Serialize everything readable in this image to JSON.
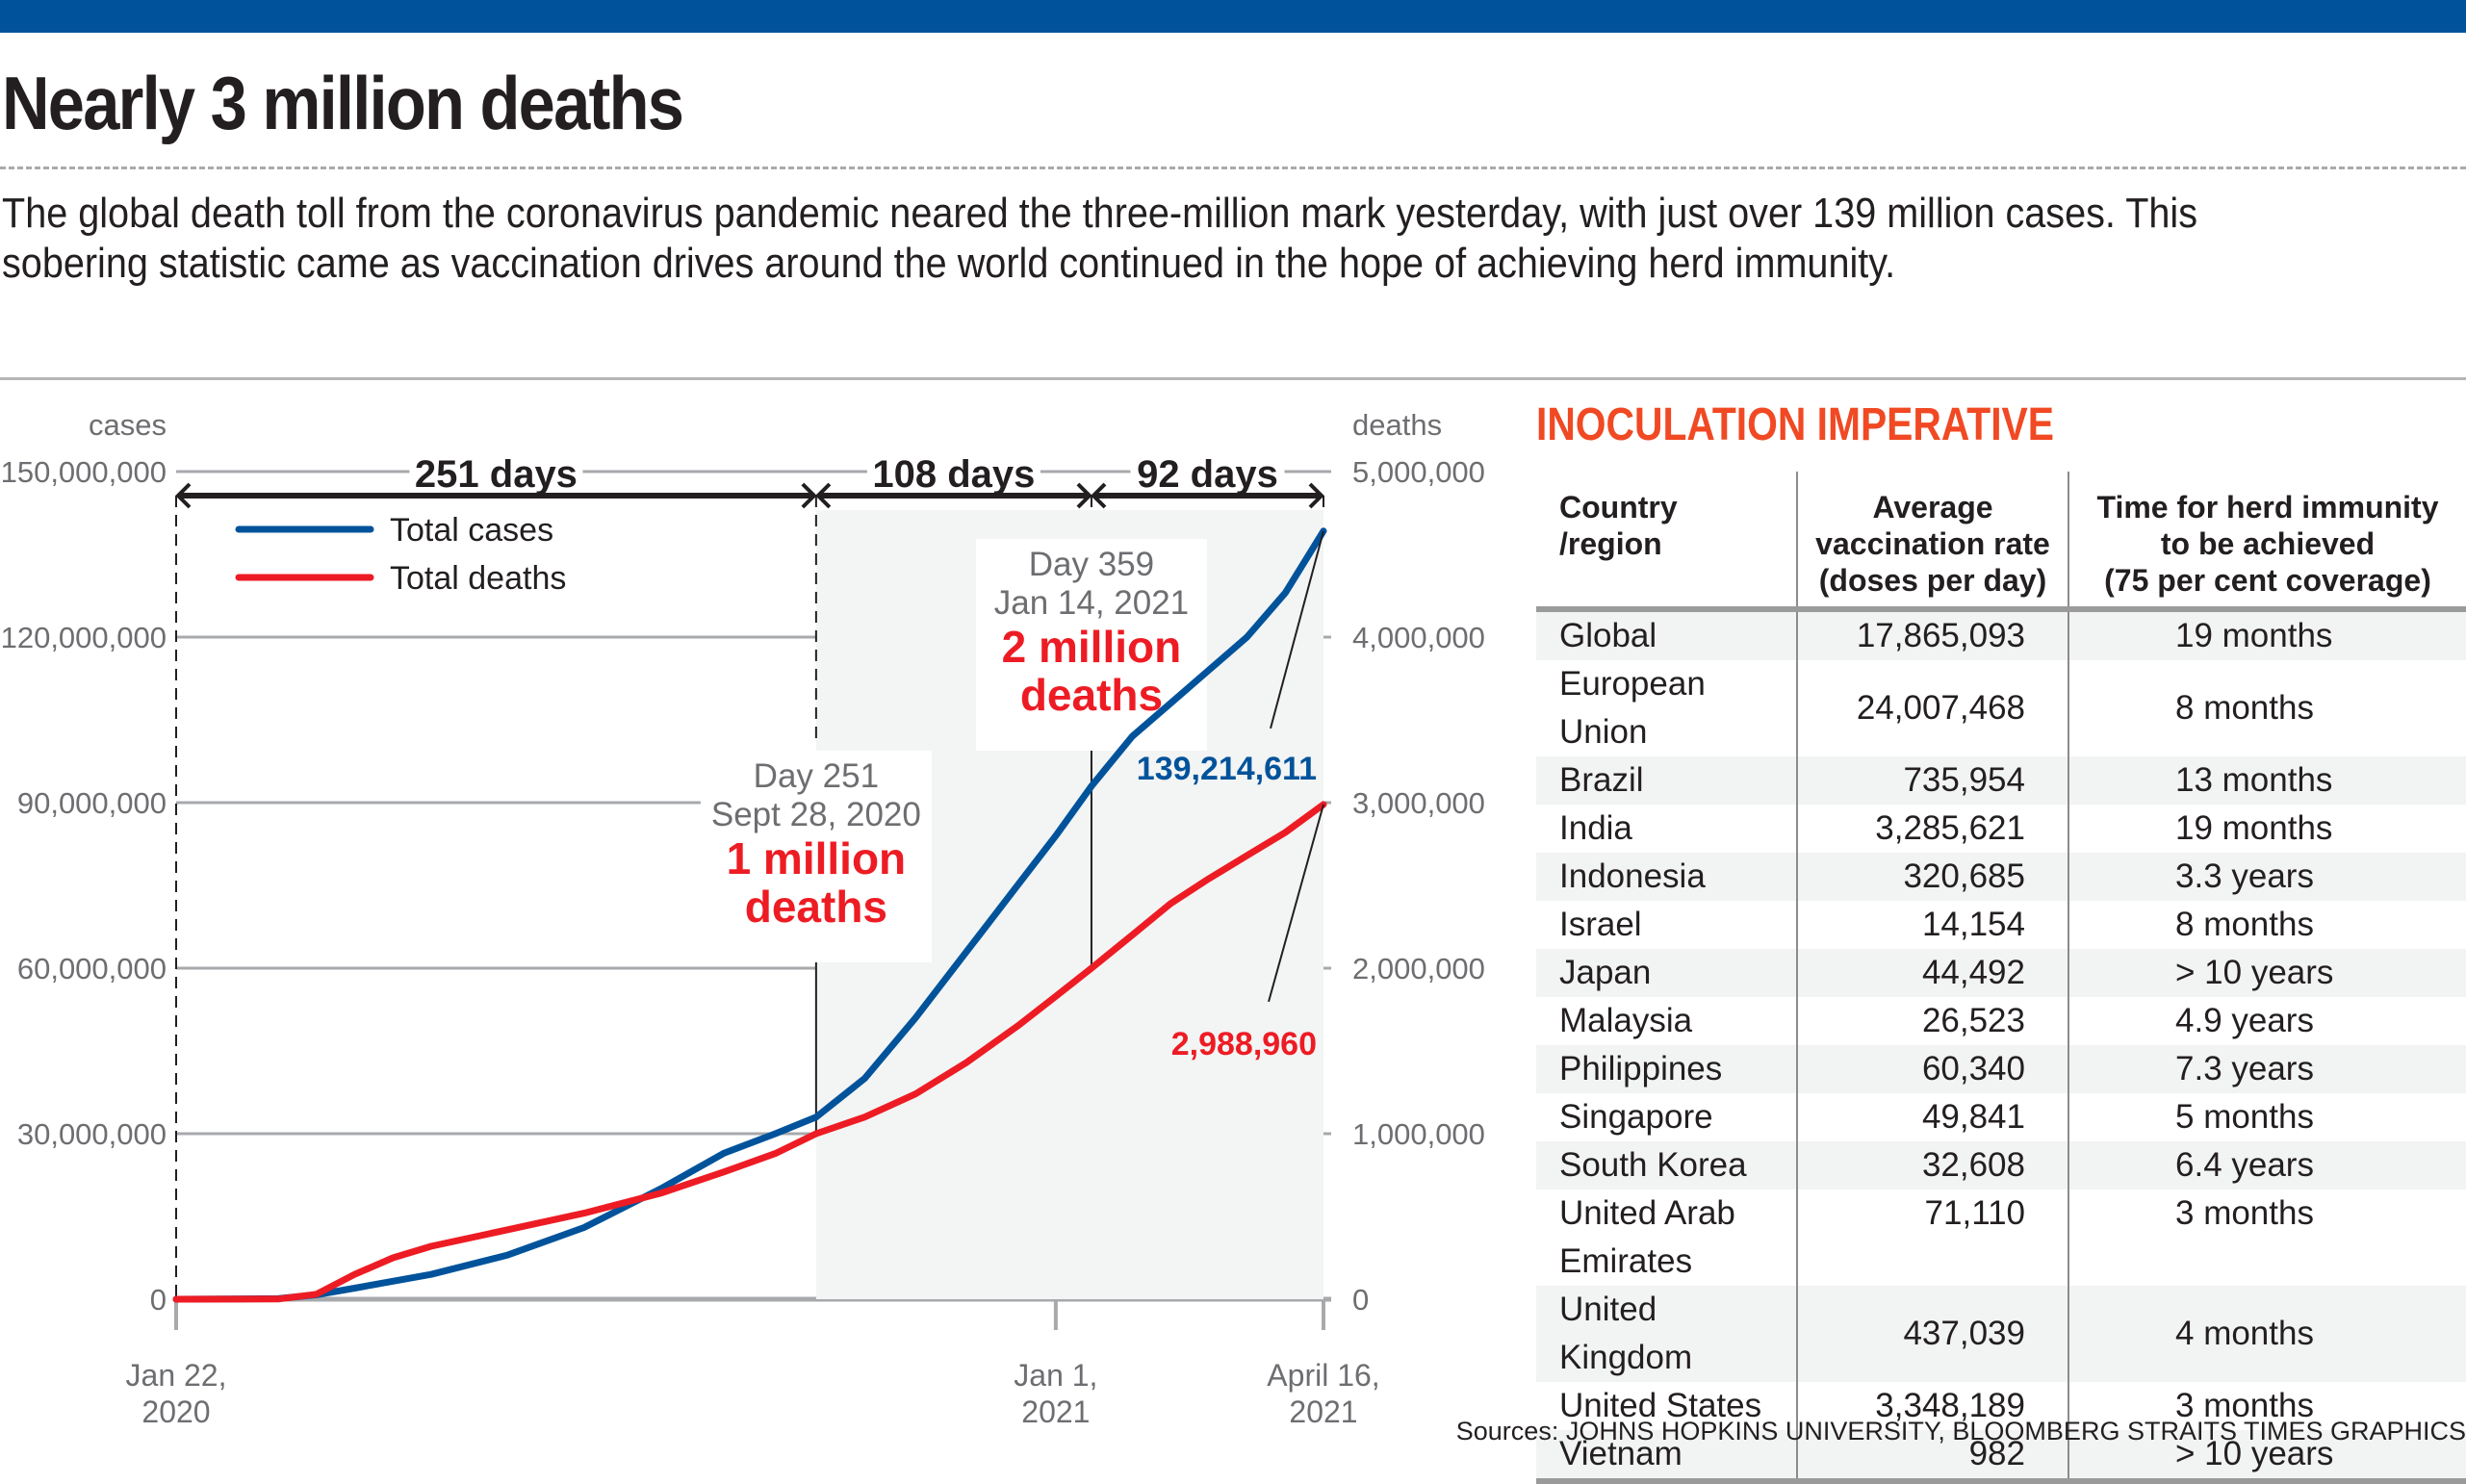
{
  "header": {
    "title": "Nearly 3 million deaths",
    "intro": "The global death toll from the coronavirus pandemic neared the three-million mark yesterday, with just over 139 million cases. This sobering statistic came as vaccination drives around the world continued in the hope of achieving herd immunity.",
    "brand_color": "#00539b"
  },
  "chart_data": {
    "type": "line",
    "title": "",
    "x_unit": "days since Jan 22, 2020",
    "xlim": [
      0,
      450
    ],
    "x_tick_labels": [
      {
        "day": 0,
        "line1": "Jan 22,",
        "line2": "2020"
      },
      {
        "day": 345,
        "line1": "Jan 1,",
        "line2": "2021"
      },
      {
        "day": 450,
        "line1": "April 16,",
        "line2": "2021"
      }
    ],
    "left_axis": {
      "label": "cases",
      "ylim": [
        0,
        150000000
      ],
      "ticks": [
        "0",
        "30,000,000",
        "60,000,000",
        "90,000,000",
        "120,000,000",
        "150,000,000"
      ]
    },
    "right_axis": {
      "label": "deaths",
      "ylim": [
        0,
        5000000
      ],
      "ticks": [
        "0",
        "1,000,000",
        "2,000,000",
        "3,000,000",
        "4,000,000",
        "5,000,000"
      ]
    },
    "grid": true,
    "legend": {
      "position": "top-left",
      "entries": [
        {
          "name": "Total cases",
          "color": "#00539b"
        },
        {
          "name": "Total deaths",
          "color": "#ed1c24"
        }
      ]
    },
    "series": [
      {
        "name": "Total cases",
        "axis": "left",
        "color": "#00539b",
        "x": [
          0,
          40,
          55,
          70,
          100,
          130,
          160,
          190,
          215,
          235,
          251,
          270,
          290,
          310,
          330,
          345,
          359,
          375,
          390,
          405,
          420,
          435,
          450
        ],
        "y": [
          0,
          100000,
          800000,
          2000000,
          4500000,
          8000000,
          13000000,
          20000000,
          26500000,
          30000000,
          33000000,
          40000000,
          51000000,
          63000000,
          75000000,
          84000000,
          93000000,
          102000000,
          108000000,
          114000000,
          120000000,
          128000000,
          139214611
        ]
      },
      {
        "name": "Total deaths",
        "axis": "right",
        "color": "#ed1c24",
        "x": [
          0,
          40,
          55,
          70,
          85,
          100,
          130,
          160,
          190,
          215,
          235,
          251,
          270,
          290,
          310,
          330,
          345,
          359,
          375,
          390,
          405,
          420,
          435,
          450
        ],
        "y": [
          0,
          1000,
          30000,
          150000,
          250000,
          320000,
          420000,
          520000,
          640000,
          770000,
          880000,
          1000000,
          1100000,
          1240000,
          1430000,
          1650000,
          1830000,
          2000000,
          2200000,
          2390000,
          2540000,
          2680000,
          2820000,
          2988960
        ]
      }
    ],
    "spans": [
      {
        "from": 0,
        "to": 251,
        "label": "251 days"
      },
      {
        "from": 251,
        "to": 359,
        "label": "108 days"
      },
      {
        "from": 359,
        "to": 450,
        "label": "92 days"
      }
    ],
    "annotations": [
      {
        "day": 251,
        "deaths": 1000000,
        "line1": "Day 251",
        "line2": "Sept 28, 2020",
        "line3": "1 million",
        "line4": "deaths"
      },
      {
        "day": 359,
        "deaths": 2000000,
        "line1": "Day 359",
        "line2": "Jan 14, 2021",
        "line3": "2 million",
        "line4": "deaths"
      }
    ],
    "end_labels": {
      "cases": "139,214,611",
      "deaths": "2,988,960"
    }
  },
  "table": {
    "title": "INOCULATION IMPERATIVE",
    "title_color": "#f04923",
    "headers": [
      [
        "Country",
        "/region"
      ],
      [
        "Average",
        "vaccination rate",
        "(doses per day)"
      ],
      [
        "Time for herd immunity",
        "to be achieved",
        "(75 per cent coverage)"
      ]
    ],
    "rows": [
      [
        "Global",
        "17,865,093",
        "19 months"
      ],
      [
        "European Union",
        "24,007,468",
        "8 months"
      ],
      [
        "Brazil",
        "735,954",
        "13 months"
      ],
      [
        "India",
        "3,285,621",
        "19 months"
      ],
      [
        "Indonesia",
        "320,685",
        "3.3 years"
      ],
      [
        "Israel",
        "14,154",
        "8 months"
      ],
      [
        "Japan",
        "44,492",
        "> 10 years"
      ],
      [
        "Malaysia",
        "26,523",
        "4.9 years"
      ],
      [
        "Philippines",
        "60,340",
        "7.3 years"
      ],
      [
        "Singapore",
        "49,841",
        "5 months"
      ],
      [
        "South Korea",
        "32,608",
        "6.4 years"
      ],
      [
        "United Arab Emirates",
        "71,110",
        "3 months"
      ],
      [
        "United Kingdom",
        "437,039",
        "4 months"
      ],
      [
        "United States",
        "3,348,189",
        "3 months"
      ],
      [
        "Vietnam",
        "982",
        "> 10 years"
      ]
    ]
  },
  "footer": {
    "sources": "Sources: JOHNS HOPKINS UNIVERSITY, BLOOMBERG   STRAITS TIMES GRAPHICS"
  }
}
